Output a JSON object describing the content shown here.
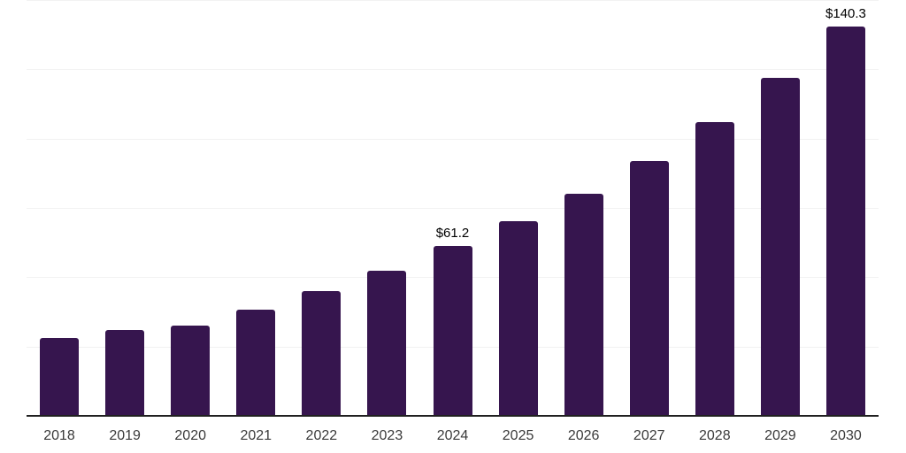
{
  "chart_data": {
    "type": "bar",
    "title": "",
    "xlabel": "",
    "ylabel": "",
    "categories": [
      "2018",
      "2019",
      "2020",
      "2021",
      "2022",
      "2023",
      "2024",
      "2025",
      "2026",
      "2027",
      "2028",
      "2029",
      "2030"
    ],
    "values": [
      28.1,
      31.0,
      32.6,
      38.2,
      45.0,
      52.4,
      61.2,
      70.2,
      80.2,
      92.0,
      105.9,
      121.8,
      140.3
    ],
    "labeled_points": [
      {
        "category": "2024",
        "label": "$61.2"
      },
      {
        "category": "2030",
        "label": "$140.3"
      }
    ],
    "ylim": [
      0,
      150
    ],
    "gridline_step": 25,
    "grid": "horizontal-only",
    "y_tick_labels_visible": false,
    "legend": "none",
    "value_prefix": "$",
    "colors": {
      "bar": "#36154e",
      "grid": "#f2f2f2",
      "axis": "#202020",
      "tick_label": "#3a3a3a",
      "data_label": "#000000",
      "background": "#ffffff"
    }
  }
}
